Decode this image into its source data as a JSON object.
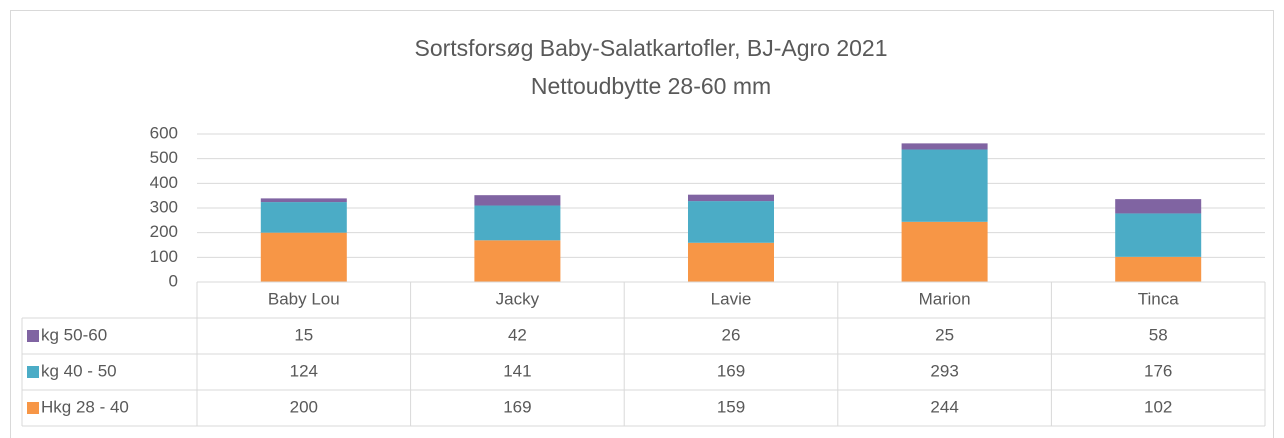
{
  "chart_data": {
    "type": "stacked_bar",
    "title": "Sortsforsøg Baby-Salatkartofler, BJ-Agro 2021",
    "subtitle": "Nettoudbytte 28-60 mm",
    "categories": [
      "Baby Lou",
      "Jacky",
      "Lavie",
      "Marion",
      "Tinca"
    ],
    "series": [
      {
        "name": "Hkg 28 - 40",
        "color": "#f79646",
        "values": [
          200,
          169,
          159,
          244,
          102
        ]
      },
      {
        "name": "kg 40 - 50",
        "color": "#4bacc6",
        "values": [
          124,
          141,
          169,
          293,
          176
        ]
      },
      {
        "name": "kg 50-60",
        "color": "#8064a2",
        "values": [
          15,
          42,
          26,
          25,
          58
        ]
      }
    ],
    "ylim": [
      0,
      600
    ],
    "yticks": [
      0,
      100,
      200,
      300,
      400,
      500,
      600
    ],
    "grid": true
  }
}
